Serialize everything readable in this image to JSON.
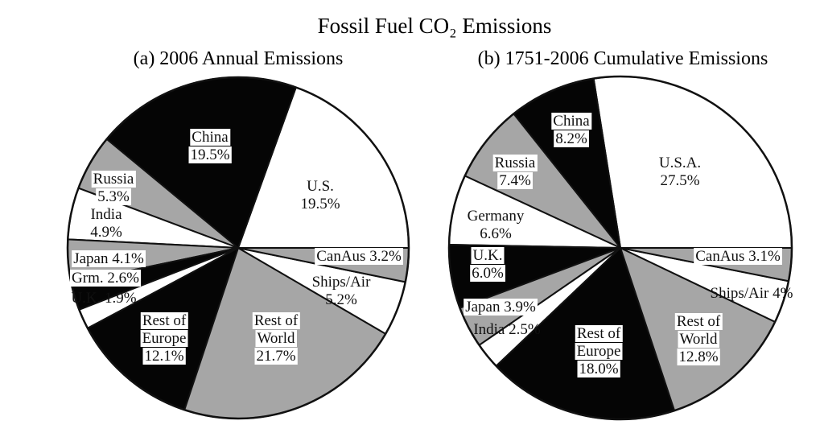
{
  "figure": {
    "title": "Fossil Fuel CO₂ Emissions"
  },
  "colors": {
    "black": "#050505",
    "white": "#ffffff",
    "gray": "#a6a6a6",
    "outline": "#111111"
  },
  "chart_data": [
    {
      "type": "pie",
      "title": "(a) 2006 Annual Emissions",
      "unit": "%",
      "direction": "counterclockwise from 3 o'clock",
      "slices": [
        {
          "name": "U.S.",
          "label": "U.S.",
          "value": 19.5,
          "value_label": "19.5%",
          "fill": "white"
        },
        {
          "name": "China",
          "label": "China",
          "value": 19.5,
          "value_label": "19.5%",
          "fill": "black"
        },
        {
          "name": "Russia",
          "label": "Russia",
          "value": 5.3,
          "value_label": "5.3%",
          "fill": "gray"
        },
        {
          "name": "India",
          "label": "India",
          "value": 4.9,
          "value_label": "4.9%",
          "fill": "white"
        },
        {
          "name": "Japan",
          "label": "Japan",
          "value": 4.1,
          "value_label": "4.1%",
          "fill": "gray"
        },
        {
          "name": "Grm.",
          "label": "Grm.",
          "value": 2.6,
          "value_label": "2.6%",
          "fill": "black"
        },
        {
          "name": "U.K.",
          "label": "U.K.",
          "value": 1.9,
          "value_label": "1.9%",
          "fill": "white"
        },
        {
          "name": "Rest of Europe",
          "label": "Rest of\nEurope",
          "value": 12.1,
          "value_label": "12.1%",
          "fill": "black"
        },
        {
          "name": "Rest of World",
          "label": "Rest of\nWorld",
          "value": 21.7,
          "value_label": "21.7%",
          "fill": "gray"
        },
        {
          "name": "Ships/Air",
          "label": "Ships/Air",
          "value": 5.2,
          "value_label": "5.2%",
          "fill": "white"
        },
        {
          "name": "CanAus",
          "label": "CanAus",
          "value": 3.2,
          "value_label": "3.2%",
          "fill": "gray"
        }
      ]
    },
    {
      "type": "pie",
      "title": "(b) 1751-2006 Cumulative Emissions",
      "unit": "%",
      "direction": "counterclockwise from 3 o'clock",
      "slices": [
        {
          "name": "U.S.A.",
          "label": "U.S.A.",
          "value": 27.5,
          "value_label": "27.5%",
          "fill": "white"
        },
        {
          "name": "China",
          "label": "China",
          "value": 8.2,
          "value_label": "8.2%",
          "fill": "black"
        },
        {
          "name": "Russia",
          "label": "Russia",
          "value": 7.4,
          "value_label": "7.4%",
          "fill": "gray"
        },
        {
          "name": "Germany",
          "label": "Germany",
          "value": 6.6,
          "value_label": "6.6%",
          "fill": "white"
        },
        {
          "name": "U.K.",
          "label": "U.K.",
          "value": 6.0,
          "value_label": "6.0%",
          "fill": "black"
        },
        {
          "name": "Japan",
          "label": "Japan",
          "value": 3.9,
          "value_label": "3.9%",
          "fill": "gray"
        },
        {
          "name": "India",
          "label": "India",
          "value": 2.5,
          "value_label": "2.5%",
          "fill": "white"
        },
        {
          "name": "Rest of Europe",
          "label": "Rest of\nEurope",
          "value": 18.0,
          "value_label": "18.0%",
          "fill": "black"
        },
        {
          "name": "Rest of World",
          "label": "Rest of\nWorld",
          "value": 12.8,
          "value_label": "12.8%",
          "fill": "gray"
        },
        {
          "name": "Ships/Air",
          "label": "Ships/Air",
          "value": 4,
          "value_label": "4%",
          "fill": "white"
        },
        {
          "name": "CanAus",
          "label": "CanAus",
          "value": 3.1,
          "value_label": "3.1%",
          "fill": "gray"
        }
      ]
    }
  ]
}
